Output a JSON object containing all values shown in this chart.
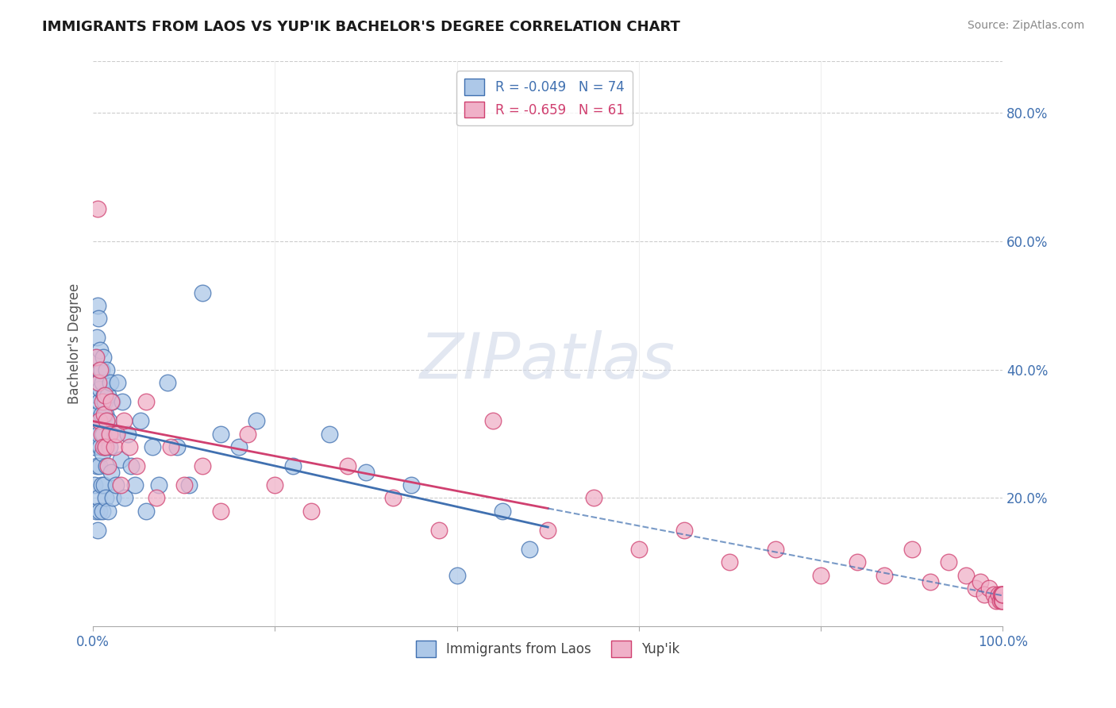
{
  "title": "IMMIGRANTS FROM LAOS VS YUP'IK BACHELOR'S DEGREE CORRELATION CHART",
  "source": "Source: ZipAtlas.com",
  "ylabel": "Bachelor's Degree",
  "right_yticks": [
    "80.0%",
    "60.0%",
    "40.0%",
    "20.0%"
  ],
  "right_ytick_vals": [
    0.8,
    0.6,
    0.4,
    0.2
  ],
  "legend1_label": "R = -0.049   N = 74",
  "legend2_label": "R = -0.659   N = 61",
  "legend1_color": "#adc8e8",
  "legend2_color": "#f0b0c8",
  "line1_color": "#4070b0",
  "line2_color": "#d04070",
  "watermark_text": "ZIPatlas",
  "blue_scatter_x": [
    0.001,
    0.002,
    0.002,
    0.003,
    0.003,
    0.003,
    0.004,
    0.004,
    0.004,
    0.005,
    0.005,
    0.005,
    0.006,
    0.006,
    0.006,
    0.006,
    0.007,
    0.007,
    0.007,
    0.007,
    0.008,
    0.008,
    0.008,
    0.009,
    0.009,
    0.009,
    0.01,
    0.01,
    0.01,
    0.011,
    0.011,
    0.012,
    0.012,
    0.013,
    0.013,
    0.014,
    0.014,
    0.015,
    0.015,
    0.016,
    0.016,
    0.017,
    0.018,
    0.019,
    0.02,
    0.021,
    0.022,
    0.024,
    0.025,
    0.027,
    0.03,
    0.032,
    0.035,
    0.038,
    0.042,
    0.046,
    0.052,
    0.058,
    0.065,
    0.072,
    0.082,
    0.092,
    0.105,
    0.12,
    0.14,
    0.16,
    0.18,
    0.22,
    0.26,
    0.3,
    0.35,
    0.4,
    0.45,
    0.48
  ],
  "blue_scatter_y": [
    0.28,
    0.32,
    0.22,
    0.42,
    0.38,
    0.18,
    0.45,
    0.36,
    0.25,
    0.5,
    0.33,
    0.15,
    0.48,
    0.38,
    0.3,
    0.2,
    0.4,
    0.35,
    0.25,
    0.18,
    0.43,
    0.37,
    0.28,
    0.4,
    0.33,
    0.22,
    0.38,
    0.27,
    0.18,
    0.42,
    0.3,
    0.36,
    0.22,
    0.35,
    0.28,
    0.33,
    0.2,
    0.4,
    0.25,
    0.36,
    0.18,
    0.32,
    0.28,
    0.38,
    0.24,
    0.35,
    0.2,
    0.3,
    0.22,
    0.38,
    0.26,
    0.35,
    0.2,
    0.3,
    0.25,
    0.22,
    0.32,
    0.18,
    0.28,
    0.22,
    0.38,
    0.28,
    0.22,
    0.52,
    0.3,
    0.28,
    0.32,
    0.25,
    0.3,
    0.24,
    0.22,
    0.08,
    0.18,
    0.12
  ],
  "pink_scatter_x": [
    0.003,
    0.005,
    0.006,
    0.007,
    0.008,
    0.009,
    0.01,
    0.011,
    0.012,
    0.013,
    0.014,
    0.015,
    0.016,
    0.018,
    0.02,
    0.023,
    0.026,
    0.03,
    0.034,
    0.04,
    0.048,
    0.058,
    0.07,
    0.085,
    0.1,
    0.12,
    0.14,
    0.17,
    0.2,
    0.24,
    0.28,
    0.33,
    0.38,
    0.44,
    0.5,
    0.55,
    0.6,
    0.65,
    0.7,
    0.75,
    0.8,
    0.84,
    0.87,
    0.9,
    0.92,
    0.94,
    0.96,
    0.97,
    0.975,
    0.98,
    0.985,
    0.99,
    0.993,
    0.995,
    0.997,
    0.998,
    0.999,
    0.999,
    1.0,
    1.0,
    1.0
  ],
  "pink_scatter_y": [
    0.42,
    0.65,
    0.38,
    0.32,
    0.4,
    0.3,
    0.35,
    0.28,
    0.33,
    0.36,
    0.28,
    0.32,
    0.25,
    0.3,
    0.35,
    0.28,
    0.3,
    0.22,
    0.32,
    0.28,
    0.25,
    0.35,
    0.2,
    0.28,
    0.22,
    0.25,
    0.18,
    0.3,
    0.22,
    0.18,
    0.25,
    0.2,
    0.15,
    0.32,
    0.15,
    0.2,
    0.12,
    0.15,
    0.1,
    0.12,
    0.08,
    0.1,
    0.08,
    0.12,
    0.07,
    0.1,
    0.08,
    0.06,
    0.07,
    0.05,
    0.06,
    0.05,
    0.04,
    0.05,
    0.04,
    0.05,
    0.04,
    0.05,
    0.04,
    0.05,
    0.05
  ],
  "xlim": [
    0.0,
    1.0
  ],
  "ylim": [
    0.0,
    0.88
  ],
  "blue_line_x_end": 0.5,
  "background_color": "#ffffff",
  "grid_color": "#cccccc"
}
